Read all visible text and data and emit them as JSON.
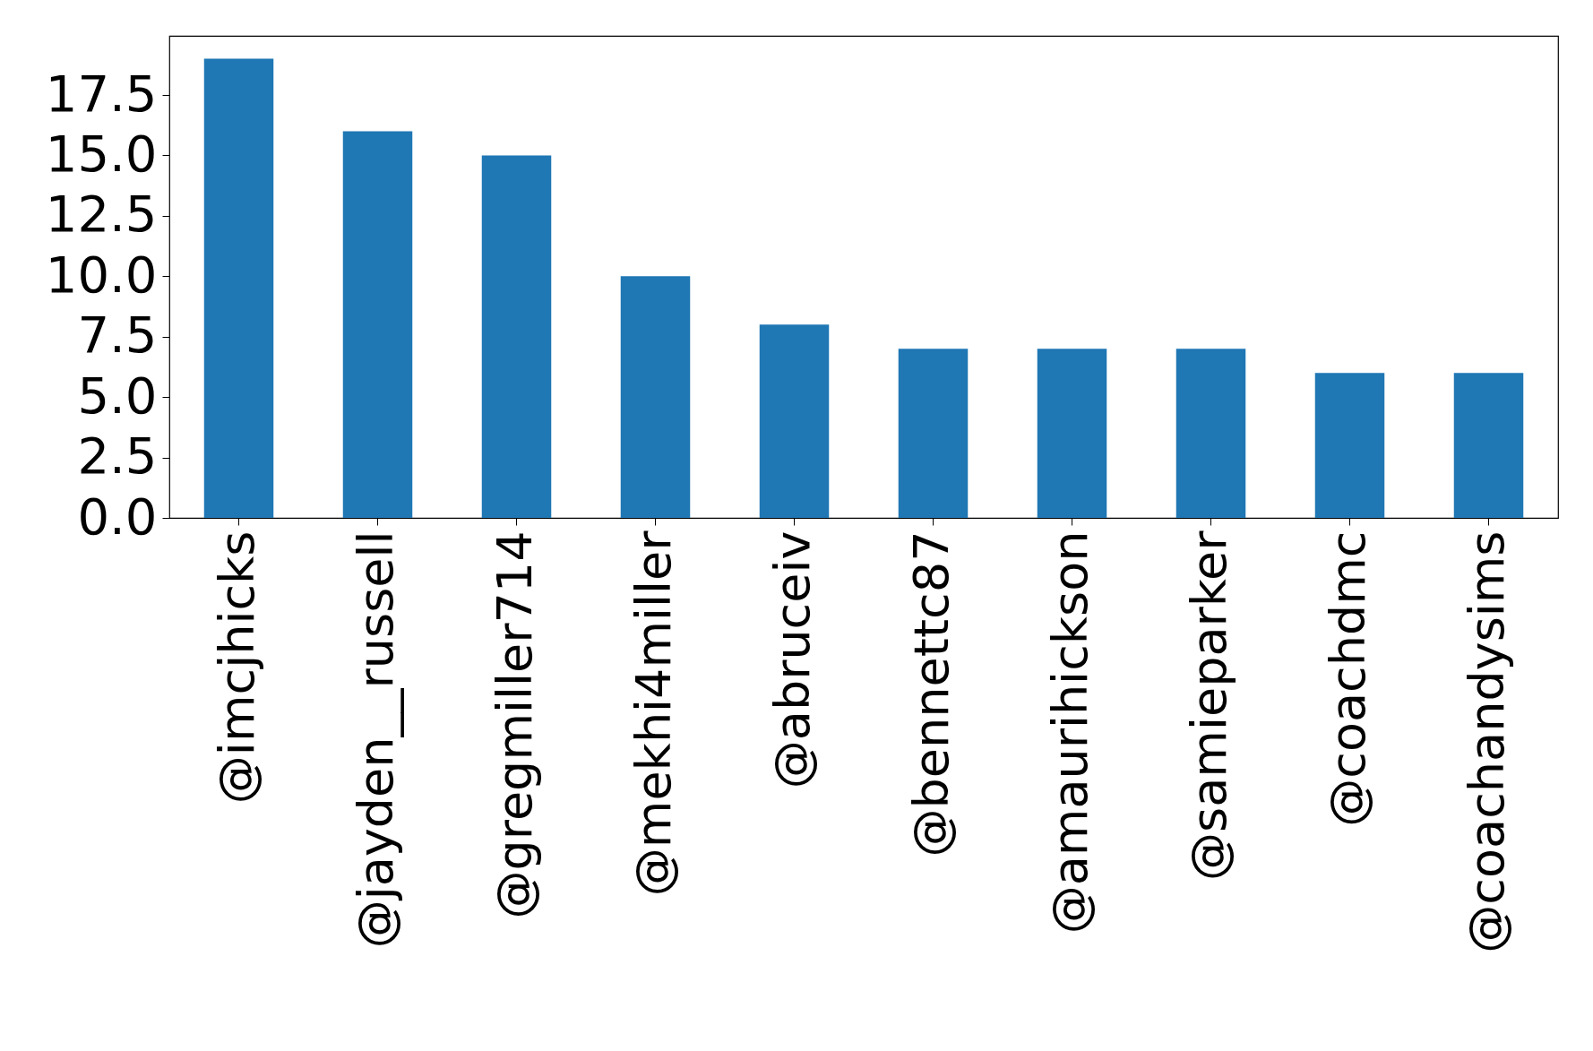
{
  "chart_data": {
    "type": "bar",
    "categories": [
      "@imcjhicks",
      "@jayden__russell",
      "@gregmiller714",
      "@mekhi4miller",
      "@abruceiv",
      "@bennettc87",
      "@amaurihickson",
      "@samieparker",
      "@coachdmc",
      "@coachandysims"
    ],
    "values": [
      19,
      16,
      15,
      10,
      8,
      7,
      7,
      7,
      6,
      6
    ],
    "color": "#1f77b4",
    "ylim": [
      0,
      19.95
    ],
    "yticks": [
      {
        "value": 0,
        "label": "0.0"
      },
      2.5,
      {
        "value": 5,
        "label": "5.0"
      },
      7.5,
      {
        "value": 10,
        "label": "10.0"
      },
      12.5,
      {
        "value": 15,
        "label": "15.0"
      },
      17.5
    ],
    "grid": false
  }
}
